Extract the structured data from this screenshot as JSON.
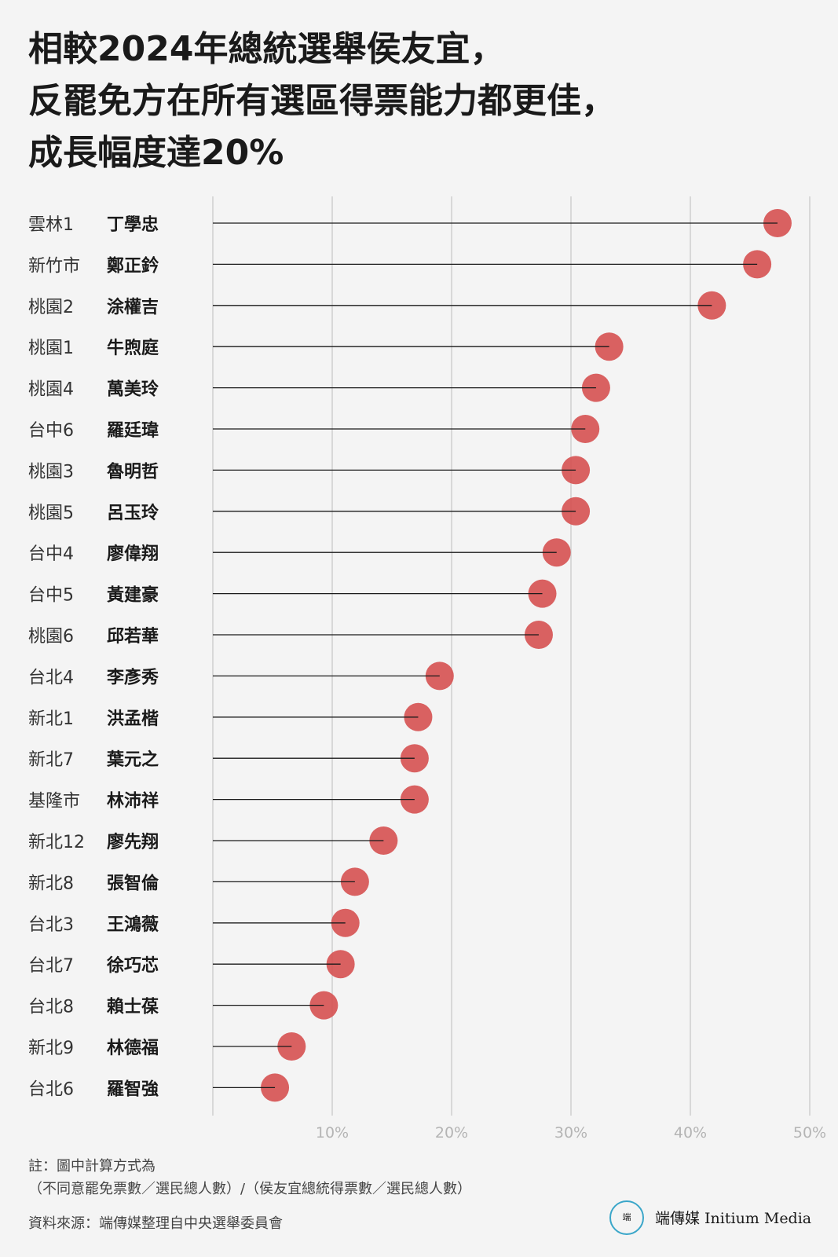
{
  "title_lines": [
    "相較2024年總統選舉侯友宜，",
    "反罷免方在所有選區得票能力都更佳，",
    "成長幅度達20%"
  ],
  "chart_data": {
    "type": "lollipop",
    "xlim": [
      0,
      50
    ],
    "xticks": [
      10,
      20,
      30,
      40,
      50
    ],
    "tick_labels": [
      "10%",
      "20%",
      "30%",
      "40%",
      "50%"
    ],
    "marker_color": "#d65454",
    "rows": [
      {
        "district": "雲林1",
        "name": "丁學忠",
        "value": 47.3
      },
      {
        "district": "新竹市",
        "name": "鄭正鈐",
        "value": 45.6
      },
      {
        "district": "桃園2",
        "name": "涂權吉",
        "value": 41.8
      },
      {
        "district": "桃園1",
        "name": "牛煦庭",
        "value": 33.2
      },
      {
        "district": "桃園4",
        "name": "萬美玲",
        "value": 32.1
      },
      {
        "district": "台中6",
        "name": "羅廷瑋",
        "value": 31.2
      },
      {
        "district": "桃園3",
        "name": "魯明哲",
        "value": 30.4
      },
      {
        "district": "桃園5",
        "name": "呂玉玲",
        "value": 30.4
      },
      {
        "district": "台中4",
        "name": "廖偉翔",
        "value": 28.8
      },
      {
        "district": "台中5",
        "name": "黃建豪",
        "value": 27.6
      },
      {
        "district": "桃園6",
        "name": "邱若華",
        "value": 27.3
      },
      {
        "district": "台北4",
        "name": "李彥秀",
        "value": 19.0
      },
      {
        "district": "新北1",
        "name": "洪孟楷",
        "value": 17.2
      },
      {
        "district": "新北7",
        "name": "葉元之",
        "value": 16.9
      },
      {
        "district": "基隆市",
        "name": "林沛祥",
        "value": 16.9
      },
      {
        "district": "新北12",
        "name": "廖先翔",
        "value": 14.3
      },
      {
        "district": "新北8",
        "name": "張智倫",
        "value": 11.9
      },
      {
        "district": "台北3",
        "name": "王鴻薇",
        "value": 11.1
      },
      {
        "district": "台北7",
        "name": "徐巧芯",
        "value": 10.7
      },
      {
        "district": "台北8",
        "name": "賴士葆",
        "value": 9.3
      },
      {
        "district": "新北9",
        "name": "林德福",
        "value": 6.6
      },
      {
        "district": "台北6",
        "name": "羅智強",
        "value": 5.2
      }
    ]
  },
  "notes": {
    "line1": "註：圖中計算方式為",
    "line2": "（不同意罷免票數／選民總人數）/（侯友宜總統得票數／選民總人數）",
    "source": "資料來源：端傳媒整理自中央選舉委員會"
  },
  "logo": {
    "mark": "端",
    "text": "端傳媒 Initium Media"
  }
}
